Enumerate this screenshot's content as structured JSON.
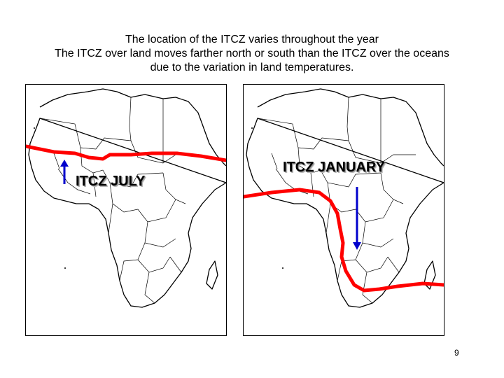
{
  "title": {
    "line1": "The location of the ITCZ varies throughout the year",
    "line2": "The ITCZ over land moves farther north or south than the ITCZ over the oceans",
    "line3": "due to the variation in land temperatures."
  },
  "maps": {
    "july": {
      "label": "ITCZ JULY",
      "arrow_direction": "north"
    },
    "january": {
      "label": "ITCZ JANUARY",
      "arrow_direction": "south"
    }
  },
  "colors": {
    "itcz_line": "#ff0000",
    "arrow": "#0000cc"
  },
  "page_number": "9"
}
